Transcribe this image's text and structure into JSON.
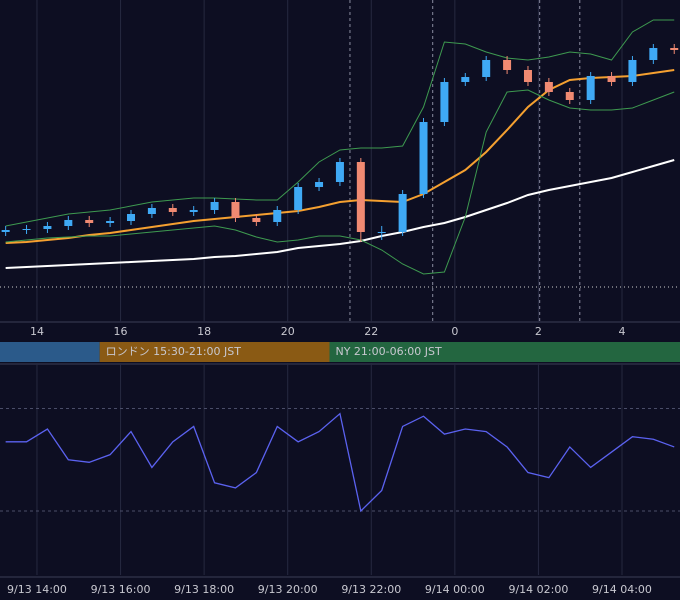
{
  "chart_data": [
    {
      "type": "candlestick",
      "x": [
        13.25,
        13.75,
        14.25,
        14.75,
        15.25,
        15.75,
        16.25,
        16.75,
        17.25,
        17.75,
        18.25,
        18.75,
        19.25,
        19.75,
        20.25,
        20.75,
        21.25,
        21.75,
        22.25,
        22.75,
        23.25,
        23.75,
        24.25,
        24.75,
        25.25,
        25.75,
        26.25,
        26.75,
        27.25,
        27.75,
        28.25,
        28.75,
        29.25
      ],
      "open": [
        90,
        92,
        93,
        96,
        102,
        99,
        101,
        108,
        114,
        110,
        112,
        120,
        104,
        100,
        112,
        135,
        140,
        160,
        90,
        90,
        128,
        200,
        240,
        245,
        262,
        252,
        240,
        230,
        222,
        246,
        240,
        262,
        274
      ],
      "high": [
        96,
        97,
        100,
        106,
        106,
        105,
        112,
        118,
        118,
        116,
        124,
        124,
        108,
        116,
        139,
        144,
        164,
        164,
        96,
        132,
        204,
        244,
        249,
        266,
        266,
        256,
        244,
        234,
        250,
        250,
        266,
        278,
        278
      ],
      "low": [
        86,
        88,
        89,
        92,
        95,
        95,
        97,
        104,
        106,
        106,
        108,
        100,
        96,
        96,
        108,
        131,
        136,
        80,
        82,
        86,
        124,
        196,
        236,
        241,
        248,
        236,
        226,
        218,
        218,
        236,
        236,
        258,
        268
      ],
      "close": [
        92,
        93,
        96,
        102,
        99,
        101,
        108,
        114,
        110,
        112,
        120,
        104,
        100,
        112,
        135,
        140,
        160,
        90,
        90,
        128,
        200,
        240,
        245,
        262,
        252,
        240,
        230,
        222,
        246,
        240,
        262,
        274,
        272
      ],
      "up_color": "#3fa9f5",
      "down_color": "#f08a72",
      "overlays": [
        {
          "color": "#ffffff",
          "values": [
            54,
            55,
            56,
            57,
            58,
            59,
            60,
            61,
            62,
            63,
            65,
            66,
            68,
            70,
            74,
            76,
            78,
            81,
            86,
            90,
            95,
            99,
            105,
            112,
            119,
            127,
            132,
            136,
            140,
            144,
            150,
            156,
            162
          ]
        },
        {
          "color": "#f5a030",
          "values": [
            79,
            80,
            82,
            84,
            87,
            89,
            92,
            95,
            98,
            101,
            103,
            105,
            107,
            109,
            111,
            115,
            120,
            122,
            121,
            120,
            128,
            140,
            152,
            170,
            192,
            215,
            232,
            242,
            244,
            245,
            246,
            249,
            252
          ]
        },
        {
          "color": "#3e9a50",
          "values": [
            96,
            100,
            104,
            108,
            110,
            112,
            116,
            120,
            122,
            124,
            124,
            123,
            122,
            122,
            140,
            160,
            172,
            174,
            174,
            176,
            215,
            280,
            278,
            270,
            264,
            262,
            265,
            270,
            268,
            262,
            290,
            302,
            302
          ]
        },
        {
          "color": "#3e9a50",
          "values": [
            80,
            82,
            84,
            85,
            86,
            86,
            88,
            90,
            92,
            94,
            96,
            92,
            85,
            80,
            82,
            86,
            86,
            82,
            72,
            58,
            48,
            50,
            105,
            190,
            230,
            232,
            222,
            214,
            212,
            212,
            214,
            222,
            230
          ]
        }
      ],
      "xlim": [
        13.115,
        29.388
      ],
      "xticks": [
        14,
        16,
        18,
        20,
        22,
        {
          "value": 24,
          "label": "0"
        },
        {
          "value": 26,
          "label": "2"
        },
        {
          "value": 28,
          "label": "4"
        }
      ],
      "ylim": [
        0,
        320
      ],
      "hlines": [
        35
      ],
      "vlines": [
        21.49,
        23.47,
        26.03,
        26.99
      ],
      "sessions": [
        {
          "end": 15.5,
          "color": "#2b5a8a"
        },
        {
          "start": 15.5,
          "end": 21,
          "color": "#8a5a14",
          "label": "ロンドン 15:30-21:00 JST"
        },
        {
          "start": 21,
          "color": "#236640",
          "label": "NY 21:00-06:00 JST"
        }
      ]
    },
    {
      "type": "line",
      "x": [
        13.25,
        13.75,
        14.25,
        14.75,
        15.25,
        15.75,
        16.25,
        16.75,
        17.25,
        17.75,
        18.25,
        18.75,
        19.25,
        19.75,
        20.25,
        20.75,
        21.25,
        21.75,
        22.25,
        22.75,
        23.25,
        23.75,
        24.25,
        24.75,
        25.25,
        25.75,
        26.25,
        26.75,
        27.25,
        27.75,
        28.25,
        28.75,
        29.25
      ],
      "series": [
        {
          "color": "#5b62f0",
          "values": [
            57,
            57,
            62,
            50,
            49,
            52,
            61,
            47,
            57,
            63,
            41,
            39,
            45,
            63,
            57,
            61,
            68,
            30,
            38,
            63,
            67,
            60,
            62,
            61,
            55,
            45,
            43,
            55,
            47,
            53,
            59,
            58,
            55
          ]
        }
      ],
      "xlim": [
        13.115,
        29.388
      ],
      "xticks": [
        {
          "value": 14,
          "label": "9/13 14:00"
        },
        {
          "value": 16,
          "label": "9/13 16:00"
        },
        {
          "value": 18,
          "label": "9/13 18:00"
        },
        {
          "value": 20,
          "label": "9/13 20:00"
        },
        {
          "value": 22,
          "label": "9/13 22:00"
        },
        {
          "value": 24,
          "label": "9/14 00:00"
        },
        {
          "value": 26,
          "label": "9/14 02:00"
        },
        {
          "value": 28,
          "label": "9/14 04:00"
        }
      ],
      "ylim": [
        5,
        87
      ],
      "hlines": [
        70,
        30
      ]
    }
  ]
}
